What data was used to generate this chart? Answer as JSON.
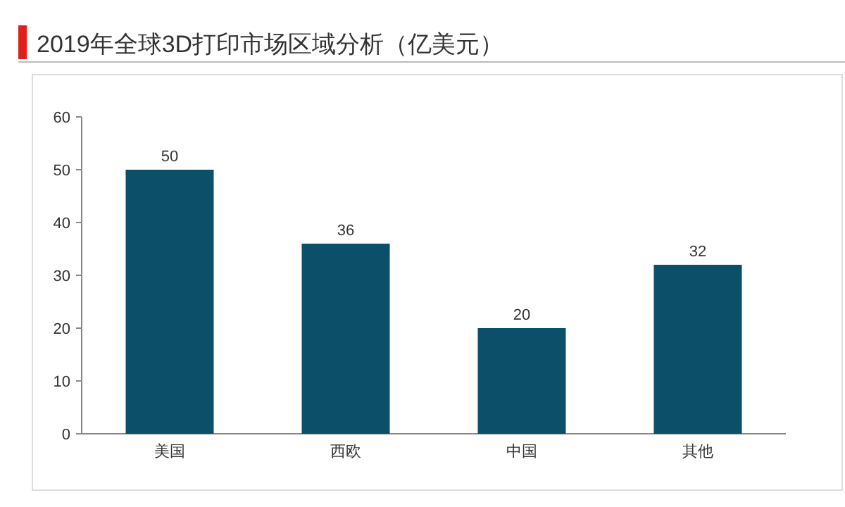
{
  "chart_data": {
    "type": "bar",
    "title": "2019年全球3D打印市场区域分析（亿美元）",
    "categories": [
      "美国",
      "西欧",
      "中国",
      "其他"
    ],
    "values": [
      50,
      36,
      20,
      32
    ],
    "color": "#0b4f68",
    "ylim": [
      0,
      60
    ],
    "yticks": [
      0,
      10,
      20,
      30,
      40,
      50,
      60
    ],
    "grid": false,
    "data_labels": true
  }
}
